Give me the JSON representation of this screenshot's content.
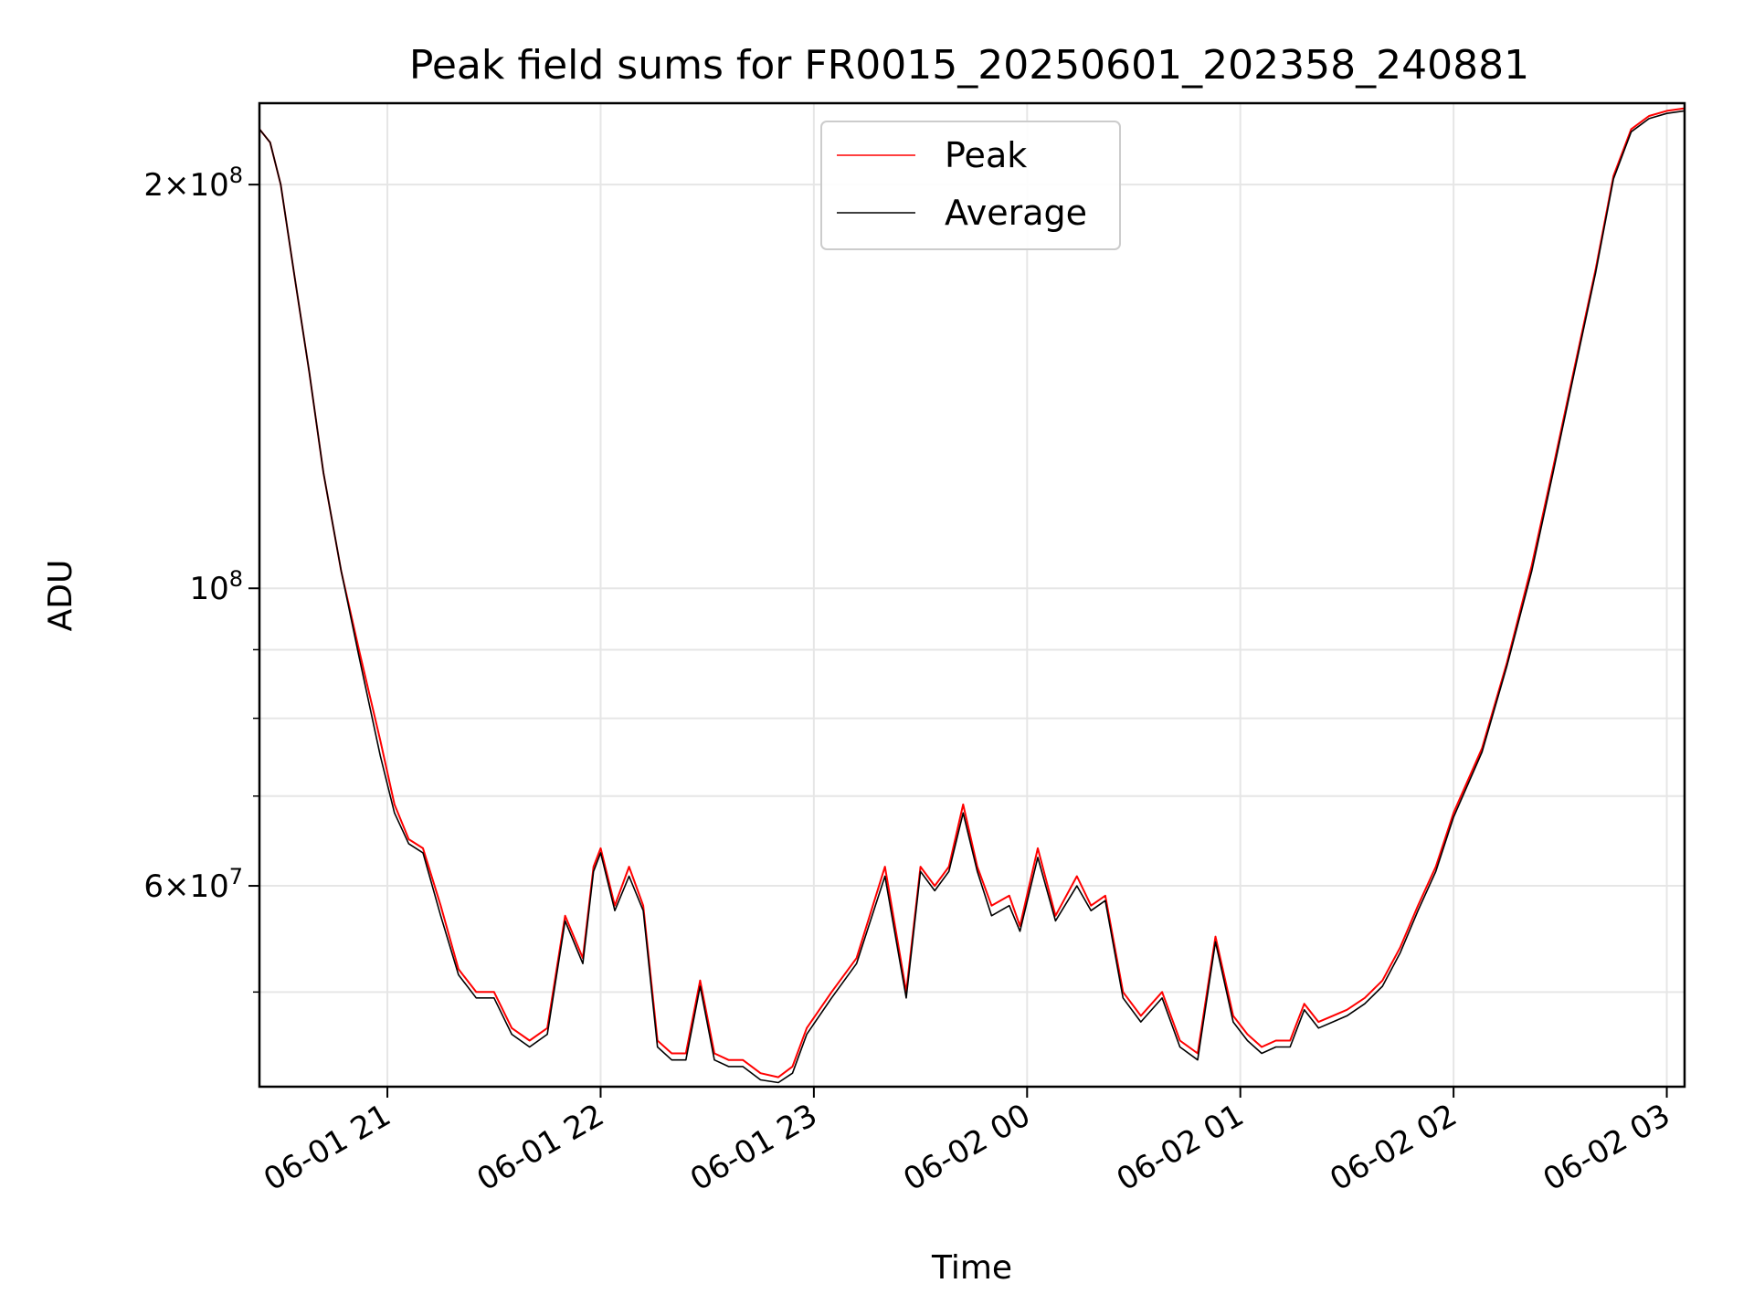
{
  "chart_data": {
    "type": "line",
    "title": "Peak field sums for FR0015_20250601_202358_240881",
    "xlabel": "Time",
    "ylabel": "ADU",
    "yscale": "log",
    "ylim": [
      42500000,
      230000000
    ],
    "xlim": [
      "2025-06-01 20:24",
      "2025-06-02 03:05"
    ],
    "grid": true,
    "legend_position": "upper center",
    "x_ticks": [
      "06-01 21",
      "06-01 22",
      "06-01 23",
      "06-02 00",
      "06-02 01",
      "06-02 02",
      "06-02 03"
    ],
    "y_major_ticks": [
      {
        "value": 100000000,
        "label_base": "10",
        "label_exp": "8",
        "mantissa": ""
      },
      {
        "value": 200000000,
        "label_base": "10",
        "label_exp": "8",
        "mantissa": "2×"
      },
      {
        "value": 60000000,
        "label_base": "10",
        "label_exp": "7",
        "mantissa": "6×"
      }
    ],
    "y_minor_gridlines": [
      50000000,
      70000000,
      80000000,
      90000000
    ],
    "x": [
      "20:24",
      "20:27",
      "20:30",
      "20:34",
      "20:38",
      "20:42",
      "20:47",
      "20:52",
      "20:58",
      "21:02",
      "21:06",
      "21:10",
      "21:15",
      "21:20",
      "21:25",
      "21:30",
      "21:35",
      "21:40",
      "21:45",
      "21:50",
      "21:55",
      "21:58",
      "22:00",
      "22:04",
      "22:08",
      "22:12",
      "22:16",
      "22:20",
      "22:24",
      "22:28",
      "22:32",
      "22:36",
      "22:40",
      "22:45",
      "22:50",
      "22:54",
      "22:58",
      "23:05",
      "23:12",
      "23:20",
      "23:26",
      "23:30",
      "23:34",
      "23:38",
      "23:42",
      "23:46",
      "23:50",
      "23:55",
      "23:58",
      "00:03",
      "00:08",
      "00:14",
      "00:18",
      "00:22",
      "00:27",
      "00:32",
      "00:38",
      "00:43",
      "00:48",
      "00:53",
      "00:58",
      "01:02",
      "01:06",
      "01:10",
      "01:14",
      "01:18",
      "01:22",
      "01:26",
      "01:30",
      "01:35",
      "01:40",
      "01:45",
      "01:50",
      "01:55",
      "02:00",
      "02:08",
      "02:15",
      "02:22",
      "02:28",
      "02:34",
      "02:40",
      "02:45",
      "02:50",
      "02:55",
      "03:00",
      "03:05"
    ],
    "series": [
      {
        "name": "Peak",
        "color": "#ff0000",
        "values": [
          220000000,
          215000000,
          200000000,
          170000000,
          145000000,
          122000000,
          103000000,
          90000000,
          77000000,
          69000000,
          65000000,
          64000000,
          58000000,
          52000000,
          50000000,
          50000000,
          47000000,
          46000000,
          47000000,
          57000000,
          53000000,
          62000000,
          64000000,
          58000000,
          62000000,
          58000000,
          46000000,
          45000000,
          45000000,
          51000000,
          45000000,
          44500000,
          44500000,
          43500000,
          43200000,
          44000000,
          47000000,
          50000000,
          53000000,
          62000000,
          50000000,
          62000000,
          60000000,
          62000000,
          69000000,
          62000000,
          58000000,
          59000000,
          56000000,
          64000000,
          57000000,
          61000000,
          58000000,
          59000000,
          50000000,
          48000000,
          50000000,
          46000000,
          45000000,
          55000000,
          48000000,
          46500000,
          45500000,
          46000000,
          46000000,
          49000000,
          47500000,
          48000000,
          48500000,
          49500000,
          51000000,
          54000000,
          58000000,
          62000000,
          68000000,
          76000000,
          88000000,
          104000000,
          123000000,
          146000000,
          173000000,
          203000000,
          220000000,
          225000000,
          227000000,
          228000000
        ]
      },
      {
        "name": "Average",
        "color": "#000000",
        "values": [
          220000000,
          215000000,
          200000000,
          170000000,
          145000000,
          122000000,
          103000000,
          89000000,
          75000000,
          68000000,
          64500000,
          63500000,
          57000000,
          51500000,
          49500000,
          49500000,
          46500000,
          45500000,
          46500000,
          56500000,
          52500000,
          61500000,
          63500000,
          57500000,
          61000000,
          57500000,
          45500000,
          44500000,
          44500000,
          50500000,
          44500000,
          44000000,
          44000000,
          43000000,
          42800000,
          43500000,
          46500000,
          49500000,
          52500000,
          61000000,
          49500000,
          61500000,
          59500000,
          61500000,
          68000000,
          61500000,
          57000000,
          58000000,
          55500000,
          63000000,
          56500000,
          60000000,
          57500000,
          58500000,
          49500000,
          47500000,
          49500000,
          45500000,
          44500000,
          54500000,
          47500000,
          46000000,
          45000000,
          45500000,
          45500000,
          48500000,
          47000000,
          47500000,
          48000000,
          49000000,
          50500000,
          53500000,
          57500000,
          61500000,
          67500000,
          75500000,
          87500000,
          103000000,
          122000000,
          145000000,
          172000000,
          202000000,
          219000000,
          224000000,
          226000000,
          227000000
        ]
      }
    ]
  }
}
